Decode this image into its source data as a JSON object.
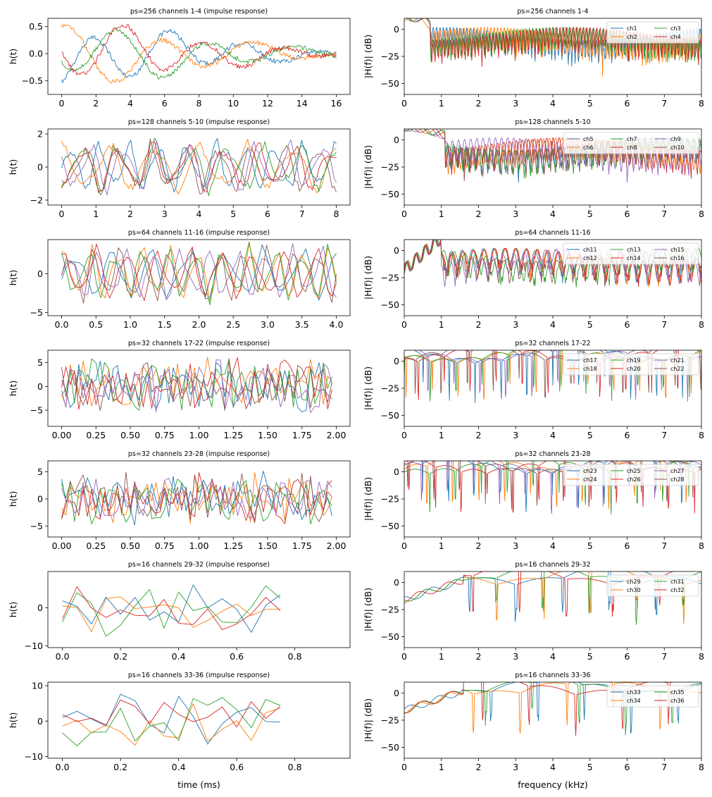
{
  "figure": {
    "xlabel_time": "time (ms)",
    "xlabel_freq": "frequency (kHz)",
    "ylabel_time": "h(t)",
    "ylabel_freq": "|H(f)| (dB)"
  },
  "colors": [
    "#1f77b4",
    "#ff7f0e",
    "#2ca02c",
    "#d62728",
    "#9467bd",
    "#8c564b"
  ],
  "chart_data": [
    {
      "type": "line",
      "title": "ps=256   channels 1-4  (impulse response)",
      "xlabel": "",
      "ylabel": "h(t)",
      "xlim": [
        -0.8,
        16.8
      ],
      "ylim": [
        -0.75,
        0.65
      ],
      "xticks": [
        0,
        2,
        4,
        6,
        8,
        10,
        12,
        14,
        16
      ],
      "xtick_labels": [
        "0",
        "2",
        "4",
        "6",
        "8",
        "10",
        "12",
        "14",
        "16"
      ],
      "yticks": [
        -0.5,
        0,
        0.5
      ],
      "ytick_labels": [
        "−0.5",
        "0.0",
        "0.5"
      ],
      "legend": false,
      "series": []
    },
    {
      "type": "line",
      "title": "ps=256   channels 1-4",
      "xlabel": "",
      "ylabel": "|H(f)| (dB)",
      "xlim": [
        0,
        8
      ],
      "ylim": [
        -60,
        10
      ],
      "xticks": [
        0,
        1,
        2,
        3,
        4,
        5,
        6,
        7,
        8
      ],
      "xtick_labels": [
        "0",
        "1",
        "2",
        "3",
        "4",
        "5",
        "6",
        "7",
        "8"
      ],
      "yticks": [
        0,
        -25,
        -50
      ],
      "ytick_labels": [
        "0",
        "−25",
        "−50"
      ],
      "legend": true,
      "legend_position": "top-right",
      "series": [
        {
          "name": "ch1"
        },
        {
          "name": "ch2"
        },
        {
          "name": "ch3"
        },
        {
          "name": "ch4"
        }
      ]
    },
    {
      "type": "line",
      "title": "ps=128   channels 5-10  (impulse response)",
      "xlabel": "",
      "ylabel": "h(t)",
      "xlim": [
        -0.4,
        8.4
      ],
      "ylim": [
        -2.3,
        2.3
      ],
      "xticks": [
        0,
        1,
        2,
        3,
        4,
        5,
        6,
        7,
        8
      ],
      "xtick_labels": [
        "0",
        "1",
        "2",
        "3",
        "4",
        "5",
        "6",
        "7",
        "8"
      ],
      "yticks": [
        -2,
        0,
        2
      ],
      "ytick_labels": [
        "−2",
        "0",
        "2"
      ],
      "legend": false,
      "series": []
    },
    {
      "type": "line",
      "title": "ps=128   channels 5-10",
      "xlabel": "",
      "ylabel": "|H(f)| (dB)",
      "xlim": [
        0,
        8
      ],
      "ylim": [
        -60,
        10
      ],
      "xticks": [
        0,
        1,
        2,
        3,
        4,
        5,
        6,
        7,
        8
      ],
      "xtick_labels": [
        "0",
        "1",
        "2",
        "3",
        "4",
        "5",
        "6",
        "7",
        "8"
      ],
      "yticks": [
        0,
        -25,
        -50
      ],
      "ytick_labels": [
        "0",
        "−25",
        "−50"
      ],
      "legend": true,
      "legend_position": "top-right",
      "series": [
        {
          "name": "ch5"
        },
        {
          "name": "ch6"
        },
        {
          "name": "ch7"
        },
        {
          "name": "ch8"
        },
        {
          "name": "ch9"
        },
        {
          "name": "ch10"
        }
      ]
    },
    {
      "type": "line",
      "title": "ps=64   channels 11-16  (impulse response)",
      "xlabel": "",
      "ylabel": "h(t)",
      "xlim": [
        -0.2,
        4.2
      ],
      "ylim": [
        -5.4,
        4.4
      ],
      "xticks": [
        0,
        0.5,
        1,
        1.5,
        2,
        2.5,
        3,
        3.5,
        4
      ],
      "xtick_labels": [
        "0.0",
        "0.5",
        "1.0",
        "1.5",
        "2.0",
        "2.5",
        "3.0",
        "3.5",
        "4.0"
      ],
      "yticks": [
        -5,
        0
      ],
      "ytick_labels": [
        "−5",
        "0"
      ],
      "legend": false,
      "series": []
    },
    {
      "type": "line",
      "title": "ps=64   channels 11-16",
      "xlabel": "",
      "ylabel": "|H(f)| (dB)",
      "xlim": [
        0,
        8
      ],
      "ylim": [
        -60,
        10
      ],
      "xticks": [
        0,
        1,
        2,
        3,
        4,
        5,
        6,
        7,
        8
      ],
      "xtick_labels": [
        "0",
        "1",
        "2",
        "3",
        "4",
        "5",
        "6",
        "7",
        "8"
      ],
      "yticks": [
        0,
        -25,
        -50
      ],
      "ytick_labels": [
        "0",
        "−25",
        "−50"
      ],
      "legend": true,
      "legend_position": "top-right",
      "series": [
        {
          "name": "ch11"
        },
        {
          "name": "ch12"
        },
        {
          "name": "ch13"
        },
        {
          "name": "ch14"
        },
        {
          "name": "ch15"
        },
        {
          "name": "ch16"
        }
      ]
    },
    {
      "type": "line",
      "title": "ps=32   channels 17-22  (impulse response)",
      "xlabel": "",
      "ylabel": "h(t)",
      "xlim": [
        -0.1,
        2.1
      ],
      "ylim": [
        -8.4,
        7.6
      ],
      "xticks": [
        0,
        0.25,
        0.5,
        0.75,
        1,
        1.25,
        1.5,
        1.75,
        2
      ],
      "xtick_labels": [
        "0.00",
        "0.25",
        "0.50",
        "0.75",
        "1.00",
        "1.25",
        "1.50",
        "1.75",
        "2.00"
      ],
      "yticks": [
        -5,
        0,
        5
      ],
      "ytick_labels": [
        "−5",
        "0",
        "5"
      ],
      "legend": false,
      "series": []
    },
    {
      "type": "line",
      "title": "ps=32   channels 17-22",
      "xlabel": "",
      "ylabel": "|H(f)| (dB)",
      "xlim": [
        0,
        8
      ],
      "ylim": [
        -60,
        10
      ],
      "xticks": [
        0,
        1,
        2,
        3,
        4,
        5,
        6,
        7,
        8
      ],
      "xtick_labels": [
        "0",
        "1",
        "2",
        "3",
        "4",
        "5",
        "6",
        "7",
        "8"
      ],
      "yticks": [
        0,
        -25,
        -50
      ],
      "ytick_labels": [
        "0",
        "−25",
        "−50"
      ],
      "legend": true,
      "legend_position": "top-right",
      "series": [
        {
          "name": "ch17"
        },
        {
          "name": "ch18"
        },
        {
          "name": "ch19"
        },
        {
          "name": "ch20"
        },
        {
          "name": "ch21"
        },
        {
          "name": "ch22"
        }
      ]
    },
    {
      "type": "line",
      "title": "ps=32   channels 23-28  (impulse response)",
      "xlabel": "",
      "ylabel": "h(t)",
      "xlim": [
        -0.1,
        2.1
      ],
      "ylim": [
        -7,
        7
      ],
      "xticks": [
        0,
        0.25,
        0.5,
        0.75,
        1,
        1.25,
        1.5,
        1.75,
        2
      ],
      "xtick_labels": [
        "0.00",
        "0.25",
        "0.50",
        "0.75",
        "1.00",
        "1.25",
        "1.50",
        "1.75",
        "2.00"
      ],
      "yticks": [
        -5,
        0,
        5
      ],
      "ytick_labels": [
        "−5",
        "0",
        "5"
      ],
      "legend": false,
      "series": []
    },
    {
      "type": "line",
      "title": "ps=32   channels 23-28",
      "xlabel": "",
      "ylabel": "|H(f)| (dB)",
      "xlim": [
        0,
        8
      ],
      "ylim": [
        -60,
        10
      ],
      "xticks": [
        0,
        1,
        2,
        3,
        4,
        5,
        6,
        7,
        8
      ],
      "xtick_labels": [
        "0",
        "1",
        "2",
        "3",
        "4",
        "5",
        "6",
        "7",
        "8"
      ],
      "yticks": [
        0,
        -25,
        -50
      ],
      "ytick_labels": [
        "0",
        "−25",
        "−50"
      ],
      "legend": true,
      "legend_position": "top-right",
      "series": [
        {
          "name": "ch23"
        },
        {
          "name": "ch24"
        },
        {
          "name": "ch25"
        },
        {
          "name": "ch26"
        },
        {
          "name": "ch27"
        },
        {
          "name": "ch28"
        }
      ]
    },
    {
      "type": "line",
      "title": "ps=16   channels 29-32  (impulse response)",
      "xlabel": "",
      "ylabel": "h(t)",
      "xlim": [
        -0.05,
        0.99
      ],
      "ylim": [
        -10.5,
        9.5
      ],
      "xticks": [
        0,
        0.2,
        0.4,
        0.6,
        0.8
      ],
      "xtick_labels": [
        "0.0",
        "0.2",
        "0.4",
        "0.6",
        "0.8"
      ],
      "yticks": [
        -10,
        0
      ],
      "ytick_labels": [
        "−10",
        "0"
      ],
      "legend": false,
      "series": []
    },
    {
      "type": "line",
      "title": "ps=16   channels 29-32",
      "xlabel": "",
      "ylabel": "|H(f)| (dB)",
      "xlim": [
        0,
        8
      ],
      "ylim": [
        -60,
        10
      ],
      "xticks": [
        0,
        1,
        2,
        3,
        4,
        5,
        6,
        7,
        8
      ],
      "xtick_labels": [
        "0",
        "1",
        "2",
        "3",
        "4",
        "5",
        "6",
        "7",
        "8"
      ],
      "yticks": [
        0,
        -25,
        -50
      ],
      "ytick_labels": [
        "0",
        "−25",
        "−50"
      ],
      "legend": true,
      "legend_position": "top-right",
      "series": [
        {
          "name": "ch29"
        },
        {
          "name": "ch30"
        },
        {
          "name": "ch31"
        },
        {
          "name": "ch32"
        }
      ]
    },
    {
      "type": "line",
      "title": "ps=16   channels 33-36  (impulse response)",
      "xlabel": "time (ms)",
      "ylabel": "h(t)",
      "xlim": [
        -0.05,
        0.99
      ],
      "ylim": [
        -10.5,
        11
      ],
      "xticks": [
        0,
        0.2,
        0.4,
        0.6,
        0.8
      ],
      "xtick_labels": [
        "0.0",
        "0.2",
        "0.4",
        "0.6",
        "0.8"
      ],
      "yticks": [
        -10,
        0,
        10
      ],
      "ytick_labels": [
        "−10",
        "0",
        "10"
      ],
      "legend": false,
      "series": []
    },
    {
      "type": "line",
      "title": "ps=16   channels 33-36",
      "xlabel": "frequency (kHz)",
      "ylabel": "|H(f)| (dB)",
      "xlim": [
        0,
        8
      ],
      "ylim": [
        -60,
        10
      ],
      "xticks": [
        0,
        1,
        2,
        3,
        4,
        5,
        6,
        7,
        8
      ],
      "xtick_labels": [
        "0",
        "1",
        "2",
        "3",
        "4",
        "5",
        "6",
        "7",
        "8"
      ],
      "yticks": [
        0,
        -25,
        -50
      ],
      "ytick_labels": [
        "0",
        "−25",
        "−50"
      ],
      "legend": true,
      "legend_position": "top-right",
      "series": [
        {
          "name": "ch33"
        },
        {
          "name": "ch34"
        },
        {
          "name": "ch35"
        },
        {
          "name": "ch36"
        }
      ]
    }
  ]
}
